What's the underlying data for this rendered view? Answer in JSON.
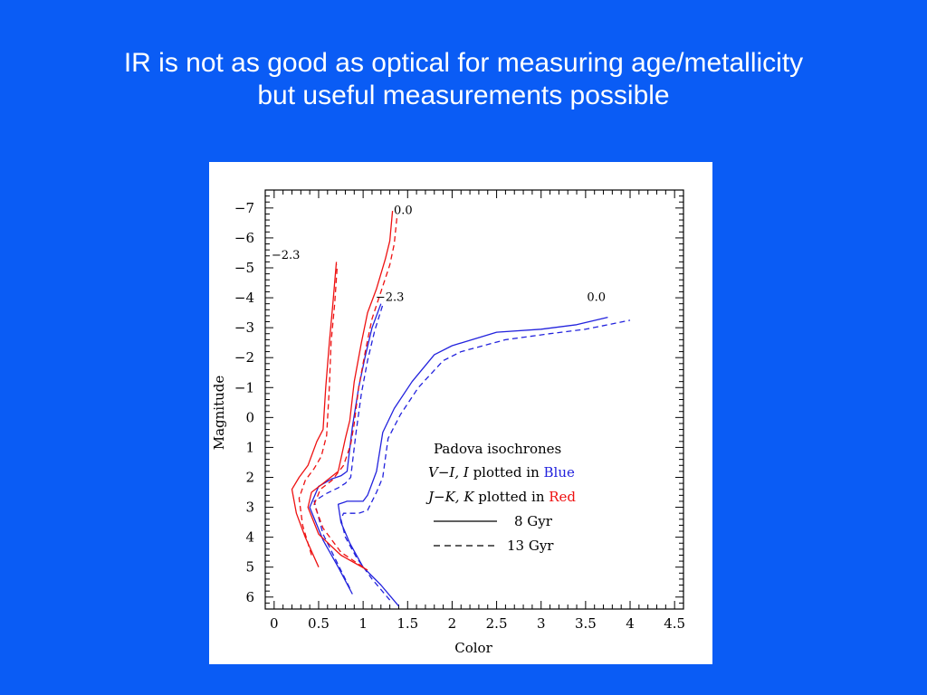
{
  "slide": {
    "title_line1": "IR is not as good as optical for measuring age/metallicity",
    "title_line2": "but useful measurements possible"
  },
  "chart_data": {
    "type": "line",
    "xlabel": "Color",
    "ylabel": "Magnitude",
    "xlim": [
      -0.1,
      4.6
    ],
    "ylim": [
      6.4,
      -7.6
    ],
    "x_ticks": [
      0,
      0.5,
      1,
      1.5,
      2,
      2.5,
      3,
      3.5,
      4,
      4.5
    ],
    "x_tick_labels": [
      "0",
      "0.5",
      "1",
      "1.5",
      "2",
      "2.5",
      "3",
      "3.5",
      "4",
      "4.5"
    ],
    "y_ticks": [
      -7,
      -6,
      -5,
      -4,
      -3,
      -2,
      -1,
      0,
      1,
      2,
      3,
      4,
      5,
      6
    ],
    "y_tick_labels": [
      "−7",
      "−6",
      "−5",
      "−4",
      "−3",
      "−2",
      "−1",
      "0",
      "1",
      "2",
      "3",
      "4",
      "5",
      "6"
    ],
    "colors": {
      "blue": "#2222dd",
      "red": "#ee1111"
    },
    "legend": {
      "line1": "Padova isochrones",
      "line2_prefix": "V−I, I",
      "line2_mid": " plotted in ",
      "line2_color_word": "Blue",
      "line3_prefix": "J−K, K",
      "line3_mid": " plotted in ",
      "line3_color_word": "Red",
      "solid_label": "8 Gyr",
      "dashed_label": "13 Gyr"
    },
    "annotations": [
      {
        "text": "0.0",
        "x": 1.45,
        "y": -6.8
      },
      {
        "text": "−2.3",
        "x": 0.13,
        "y": -5.3
      },
      {
        "text": "−2.3",
        "x": 1.3,
        "y": -3.9
      },
      {
        "text": "0.0",
        "x": 3.62,
        "y": -3.9
      }
    ],
    "series": [
      {
        "color": "blue",
        "style": "solid",
        "points": [
          [
            1.4,
            6.3
          ],
          [
            1.2,
            5.6
          ],
          [
            1.0,
            5.0
          ],
          [
            0.85,
            4.2
          ],
          [
            0.75,
            3.5
          ],
          [
            0.72,
            2.9
          ],
          [
            0.82,
            2.8
          ],
          [
            1.0,
            2.8
          ],
          [
            1.05,
            2.6
          ],
          [
            1.1,
            2.2
          ],
          [
            1.15,
            1.8
          ],
          [
            1.22,
            0.5
          ],
          [
            1.35,
            -0.3
          ],
          [
            1.55,
            -1.2
          ],
          [
            1.8,
            -2.1
          ],
          [
            2.0,
            -2.4
          ],
          [
            2.5,
            -2.85
          ],
          [
            3.0,
            -2.95
          ],
          [
            3.4,
            -3.1
          ],
          [
            3.75,
            -3.35
          ]
        ]
      },
      {
        "color": "blue",
        "style": "dashed",
        "points": [
          [
            1.3,
            6.1
          ],
          [
            1.1,
            5.4
          ],
          [
            0.93,
            4.7
          ],
          [
            0.8,
            4.0
          ],
          [
            0.75,
            3.4
          ],
          [
            0.78,
            3.2
          ],
          [
            0.95,
            3.2
          ],
          [
            1.05,
            3.1
          ],
          [
            1.1,
            2.8
          ],
          [
            1.15,
            2.5
          ],
          [
            1.22,
            2.0
          ],
          [
            1.28,
            0.7
          ],
          [
            1.42,
            -0.1
          ],
          [
            1.62,
            -1.0
          ],
          [
            1.9,
            -1.9
          ],
          [
            2.1,
            -2.2
          ],
          [
            2.6,
            -2.6
          ],
          [
            3.1,
            -2.8
          ],
          [
            3.5,
            -2.95
          ],
          [
            4.0,
            -3.25
          ]
        ]
      },
      {
        "color": "blue",
        "style": "solid",
        "points": [
          [
            0.88,
            5.9
          ],
          [
            0.72,
            5.0
          ],
          [
            0.55,
            4.1
          ],
          [
            0.4,
            3.0
          ],
          [
            0.5,
            2.3
          ],
          [
            0.65,
            2.05
          ],
          [
            0.75,
            1.95
          ],
          [
            0.82,
            1.8
          ],
          [
            0.88,
            0.3
          ],
          [
            0.95,
            -1.0
          ],
          [
            1.02,
            -2.0
          ],
          [
            1.1,
            -3.0
          ],
          [
            1.2,
            -3.8
          ]
        ]
      },
      {
        "color": "blue",
        "style": "dashed",
        "points": [
          [
            0.85,
            5.7
          ],
          [
            0.7,
            4.8
          ],
          [
            0.55,
            3.9
          ],
          [
            0.45,
            2.8
          ],
          [
            0.58,
            2.55
          ],
          [
            0.72,
            2.35
          ],
          [
            0.8,
            2.2
          ],
          [
            0.86,
            2.0
          ],
          [
            0.92,
            0.5
          ],
          [
            0.98,
            -0.8
          ],
          [
            1.05,
            -1.9
          ],
          [
            1.13,
            -2.9
          ],
          [
            1.23,
            -3.85
          ]
        ]
      },
      {
        "color": "red",
        "style": "solid",
        "points": [
          [
            0.5,
            5.0
          ],
          [
            0.35,
            4.0
          ],
          [
            0.25,
            3.2
          ],
          [
            0.2,
            2.4
          ],
          [
            0.28,
            2.0
          ],
          [
            0.38,
            1.6
          ],
          [
            0.48,
            0.8
          ],
          [
            0.55,
            0.4
          ],
          [
            0.58,
            -1.0
          ],
          [
            0.62,
            -2.5
          ],
          [
            0.66,
            -3.8
          ],
          [
            0.7,
            -5.2
          ]
        ]
      },
      {
        "color": "red",
        "style": "dashed",
        "points": [
          [
            0.42,
            4.6
          ],
          [
            0.32,
            3.6
          ],
          [
            0.28,
            2.7
          ],
          [
            0.35,
            2.1
          ],
          [
            0.45,
            1.7
          ],
          [
            0.53,
            1.3
          ],
          [
            0.59,
            0.6
          ],
          [
            0.62,
            -1.0
          ],
          [
            0.64,
            -2.5
          ],
          [
            0.68,
            -3.8
          ],
          [
            0.71,
            -5.1
          ]
        ]
      },
      {
        "color": "red",
        "style": "solid",
        "points": [
          [
            1.05,
            5.1
          ],
          [
            0.75,
            4.6
          ],
          [
            0.5,
            3.9
          ],
          [
            0.38,
            3.0
          ],
          [
            0.42,
            2.5
          ],
          [
            0.55,
            2.2
          ],
          [
            0.72,
            1.8
          ],
          [
            0.8,
            0.7
          ],
          [
            0.85,
            0.1
          ],
          [
            0.9,
            -1.2
          ],
          [
            0.98,
            -2.5
          ],
          [
            1.05,
            -3.5
          ],
          [
            1.15,
            -4.3
          ],
          [
            1.25,
            -5.3
          ],
          [
            1.3,
            -5.9
          ],
          [
            1.33,
            -6.9
          ]
        ]
      },
      {
        "color": "red",
        "style": "dashed",
        "points": [
          [
            1.0,
            5.0
          ],
          [
            0.75,
            4.5
          ],
          [
            0.55,
            3.7
          ],
          [
            0.45,
            2.9
          ],
          [
            0.52,
            2.4
          ],
          [
            0.65,
            2.1
          ],
          [
            0.78,
            1.6
          ],
          [
            0.86,
            0.9
          ],
          [
            0.9,
            0.2
          ],
          [
            0.95,
            -1.0
          ],
          [
            1.03,
            -2.3
          ],
          [
            1.1,
            -3.3
          ],
          [
            1.2,
            -4.2
          ],
          [
            1.3,
            -5.1
          ],
          [
            1.35,
            -5.8
          ],
          [
            1.38,
            -6.7
          ]
        ]
      }
    ]
  }
}
